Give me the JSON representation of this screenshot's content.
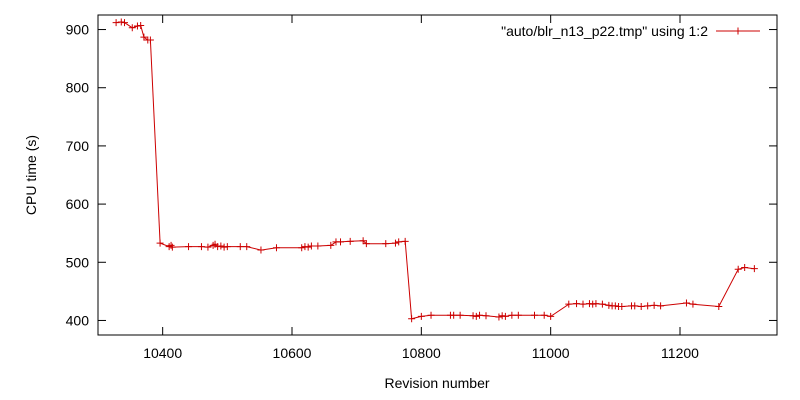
{
  "chart_data": {
    "type": "line",
    "title": "",
    "xlabel": "Revision number",
    "ylabel": "CPU time (s)",
    "xlim": [
      10300,
      11350
    ],
    "ylim": [
      375,
      925
    ],
    "x_ticks": [
      10400,
      10600,
      10800,
      11000,
      11200
    ],
    "y_ticks": [
      400,
      500,
      600,
      700,
      800,
      900
    ],
    "grid": false,
    "legend_position": "top-right",
    "series": [
      {
        "name": "\"auto/blr_n13_p22.tmp\" using 1:2",
        "color": "#cc0000",
        "marker": "plus",
        "points": [
          [
            10328,
            912
          ],
          [
            10336,
            913
          ],
          [
            10341,
            912
          ],
          [
            10353,
            903
          ],
          [
            10361,
            906
          ],
          [
            10366,
            907
          ],
          [
            10371,
            887
          ],
          [
            10377,
            882
          ],
          [
            10381,
            882
          ],
          [
            10396,
            533
          ],
          [
            10410,
            527
          ],
          [
            10413,
            529
          ],
          [
            10415,
            526
          ],
          [
            10440,
            527
          ],
          [
            10460,
            527
          ],
          [
            10470,
            526
          ],
          [
            10478,
            529
          ],
          [
            10481,
            531
          ],
          [
            10485,
            527
          ],
          [
            10490,
            528
          ],
          [
            10495,
            526
          ],
          [
            10500,
            527
          ],
          [
            10520,
            527
          ],
          [
            10530,
            527
          ],
          [
            10552,
            521
          ],
          [
            10576,
            525
          ],
          [
            10615,
            525
          ],
          [
            10620,
            527
          ],
          [
            10625,
            526
          ],
          [
            10630,
            528
          ],
          [
            10640,
            528
          ],
          [
            10660,
            529
          ],
          [
            10668,
            535
          ],
          [
            10675,
            535
          ],
          [
            10690,
            536
          ],
          [
            10710,
            537
          ],
          [
            10715,
            532
          ],
          [
            10745,
            532
          ],
          [
            10760,
            533
          ],
          [
            10765,
            535
          ],
          [
            10775,
            536
          ],
          [
            10785,
            403
          ],
          [
            10800,
            407
          ],
          [
            10815,
            409
          ],
          [
            10845,
            409
          ],
          [
            10850,
            409
          ],
          [
            10860,
            409
          ],
          [
            10880,
            408
          ],
          [
            10885,
            407
          ],
          [
            10890,
            409
          ],
          [
            10900,
            408
          ],
          [
            10920,
            406
          ],
          [
            10925,
            408
          ],
          [
            10930,
            407
          ],
          [
            10940,
            409
          ],
          [
            10950,
            409
          ],
          [
            10975,
            409
          ],
          [
            10990,
            409
          ],
          [
            11000,
            407
          ],
          [
            11028,
            428
          ],
          [
            11040,
            429
          ],
          [
            11050,
            428
          ],
          [
            11060,
            429
          ],
          [
            11065,
            428
          ],
          [
            11070,
            429
          ],
          [
            11080,
            428
          ],
          [
            11090,
            426
          ],
          [
            11095,
            425
          ],
          [
            11100,
            425
          ],
          [
            11105,
            424
          ],
          [
            11110,
            424
          ],
          [
            11125,
            425
          ],
          [
            11130,
            425
          ],
          [
            11140,
            424
          ],
          [
            11150,
            425
          ],
          [
            11160,
            426
          ],
          [
            11170,
            425
          ],
          [
            11210,
            430
          ],
          [
            11220,
            428
          ],
          [
            11260,
            424
          ],
          [
            11290,
            488
          ],
          [
            11300,
            491
          ],
          [
            11315,
            489
          ]
        ]
      }
    ]
  }
}
